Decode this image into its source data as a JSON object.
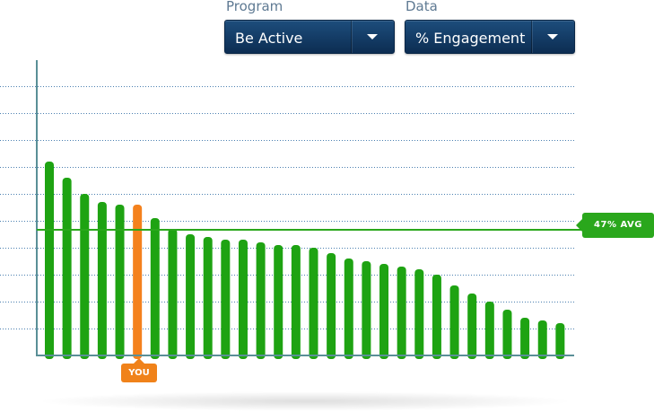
{
  "controls": {
    "program": {
      "label": "Program",
      "value": "Be Active"
    },
    "data": {
      "label": "Data",
      "value": "% Engagement"
    }
  },
  "chart_data": {
    "type": "bar",
    "title": "",
    "xlabel": "",
    "ylabel": "",
    "ylim": [
      0,
      100
    ],
    "grid": true,
    "values": [
      72,
      66,
      60,
      57,
      56,
      56,
      51,
      47,
      45,
      44,
      43,
      43,
      42,
      41,
      41,
      40,
      38,
      36,
      35,
      34,
      33,
      32,
      30,
      26,
      23,
      20,
      17,
      14,
      13,
      12
    ],
    "highlight_index": 5,
    "average": 47,
    "average_label": "47% AVG",
    "you_label": "YOU",
    "colors": {
      "bar": "#1ea312",
      "highlight": "#f4811d",
      "average_line": "#2aa71c",
      "grid": "#4a7fb0",
      "axis": "#5a8f97"
    }
  }
}
